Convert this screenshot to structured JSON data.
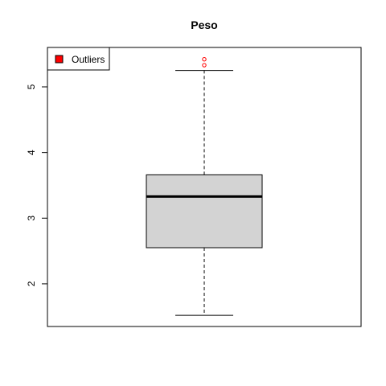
{
  "chart_data": {
    "type": "boxplot",
    "title": "Peso",
    "xlabel": "",
    "ylabel": "",
    "ylim": [
      1.35,
      5.6
    ],
    "yticks": [
      2,
      3,
      4,
      5
    ],
    "box": {
      "whisker_low": 1.52,
      "q1": 2.55,
      "median": 3.33,
      "q3": 3.66,
      "whisker_high": 5.25
    },
    "outliers": [
      5.33,
      5.42
    ],
    "legend": {
      "position": "top-left",
      "entries": [
        {
          "label": "Outliers",
          "color": "#ff0000"
        }
      ]
    },
    "colors": {
      "box_fill": "#d3d3d3",
      "outlier": "#ff0000",
      "line": "#000000"
    }
  }
}
